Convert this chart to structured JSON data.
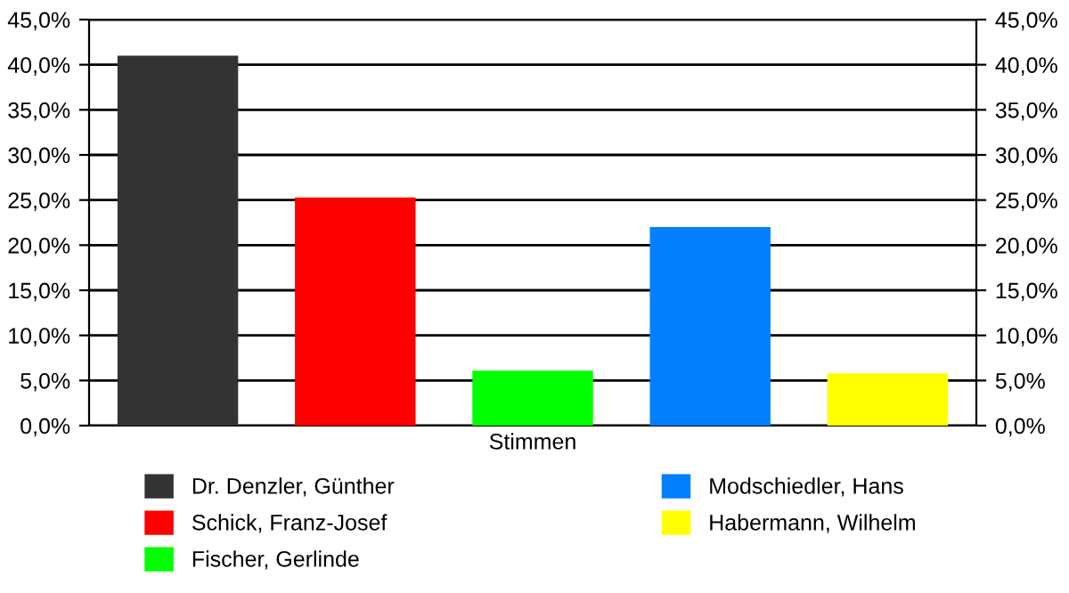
{
  "chart_data": {
    "type": "bar",
    "categories": [
      "Stimmen"
    ],
    "series": [
      {
        "name": "Dr. Denzler, Günther",
        "color": "#333333",
        "values": [
          41.0
        ]
      },
      {
        "name": "Schick, Franz-Josef",
        "color": "#ff0000",
        "values": [
          25.3
        ]
      },
      {
        "name": "Fischer, Gerlinde",
        "color": "#00ff00",
        "values": [
          6.1
        ]
      },
      {
        "name": "Modschiedler, Hans",
        "color": "#0080ff",
        "values": [
          22.0
        ]
      },
      {
        "name": "Habermann, Wilhelm",
        "color": "#ffff00",
        "values": [
          5.8
        ]
      }
    ],
    "ylim": [
      0,
      45
    ],
    "yticks": [
      {
        "value": 0,
        "label": "0,0%"
      },
      {
        "value": 5,
        "label": "5,0%"
      },
      {
        "value": 10,
        "label": "10,0%"
      },
      {
        "value": 15,
        "label": "15,0%"
      },
      {
        "value": 20,
        "label": "20,0%"
      },
      {
        "value": 25,
        "label": "25,0%"
      },
      {
        "value": 30,
        "label": "30,0%"
      },
      {
        "value": 35,
        "label": "35,0%"
      },
      {
        "value": 40,
        "label": "40,0%"
      },
      {
        "value": 45,
        "label": "45,0%"
      }
    ],
    "grid": "y",
    "legend": "bottom"
  }
}
